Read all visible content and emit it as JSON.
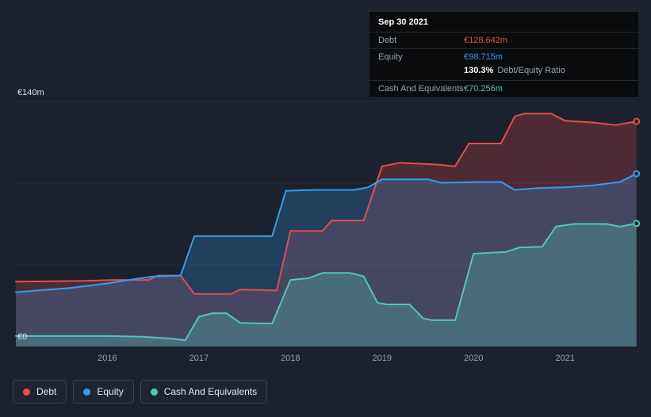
{
  "colors": {
    "background": "#1b212d",
    "debt": "#e64c4c",
    "equity": "#2f9ff0",
    "cash": "#4fc8b2",
    "grid": "#262e3c"
  },
  "tooltip": {
    "date": "Sep 30 2021",
    "debt_label": "Debt",
    "debt_value": "€128.642m",
    "equity_label": "Equity",
    "equity_value": "€98.715m",
    "ratio_value": "130.3%",
    "ratio_label": "Debt/Equity Ratio",
    "cash_label": "Cash And Equivalents",
    "cash_value": "€70.256m"
  },
  "axis": {
    "y_top": "€140m",
    "y_bottom": "€0",
    "x_ticks": [
      "2016",
      "2017",
      "2018",
      "2019",
      "2020",
      "2021"
    ]
  },
  "legend": {
    "debt": "Debt",
    "equity": "Equity",
    "cash": "Cash And Equivalents"
  },
  "chart_data": {
    "type": "area",
    "title": "Debt, Equity and Cash history to Sep 30 2021",
    "x_range": [
      2015.0,
      2021.8
    ],
    "ylim": [
      0,
      140
    ],
    "y_unit": "€m",
    "gridlines": [
      0,
      46.67,
      93.33,
      140
    ],
    "legend_position": "bottom-left",
    "series": [
      {
        "name": "Debt",
        "color": "#e64c4c",
        "fill_opacity": 0.25,
        "points": [
          [
            2015.0,
            37
          ],
          [
            2015.75,
            37.5
          ],
          [
            2016.1,
            38
          ],
          [
            2016.45,
            38
          ],
          [
            2016.55,
            40.5
          ],
          [
            2016.8,
            40.5
          ],
          [
            2016.95,
            30
          ],
          [
            2017.35,
            30
          ],
          [
            2017.45,
            32.5
          ],
          [
            2017.85,
            32
          ],
          [
            2018.0,
            66
          ],
          [
            2018.35,
            66
          ],
          [
            2018.45,
            72
          ],
          [
            2018.8,
            72
          ],
          [
            2019.0,
            103
          ],
          [
            2019.2,
            105
          ],
          [
            2019.6,
            104
          ],
          [
            2019.8,
            103
          ],
          [
            2019.95,
            116
          ],
          [
            2020.3,
            116
          ],
          [
            2020.45,
            131.5
          ],
          [
            2020.55,
            133
          ],
          [
            2020.85,
            133
          ],
          [
            2021.0,
            129
          ],
          [
            2021.3,
            128
          ],
          [
            2021.55,
            126.5
          ],
          [
            2021.78,
            128.642
          ]
        ]
      },
      {
        "name": "Equity",
        "color": "#2f9ff0",
        "fill_opacity": 0.25,
        "points": [
          [
            2015.0,
            31
          ],
          [
            2015.6,
            33.5
          ],
          [
            2016.0,
            36
          ],
          [
            2016.3,
            38.5
          ],
          [
            2016.5,
            40
          ],
          [
            2016.8,
            40.5
          ],
          [
            2016.95,
            63
          ],
          [
            2017.8,
            63
          ],
          [
            2017.95,
            89
          ],
          [
            2018.3,
            89.5
          ],
          [
            2018.7,
            89.5
          ],
          [
            2018.85,
            91
          ],
          [
            2019.0,
            95.5
          ],
          [
            2019.5,
            95.5
          ],
          [
            2019.65,
            93.5
          ],
          [
            2020.05,
            94
          ],
          [
            2020.3,
            94
          ],
          [
            2020.45,
            89.5
          ],
          [
            2020.7,
            90.5
          ],
          [
            2021.0,
            91
          ],
          [
            2021.3,
            92
          ],
          [
            2021.6,
            94
          ],
          [
            2021.78,
            98.715
          ]
        ]
      },
      {
        "name": "Cash And Equivalents",
        "color": "#4fc8b2",
        "fill_opacity": 0.28,
        "points": [
          [
            2015.0,
            6
          ],
          [
            2016.0,
            6
          ],
          [
            2016.4,
            5.5
          ],
          [
            2016.7,
            4.5
          ],
          [
            2016.85,
            3.5
          ],
          [
            2017.0,
            17
          ],
          [
            2017.15,
            19
          ],
          [
            2017.3,
            19
          ],
          [
            2017.45,
            13.5
          ],
          [
            2017.8,
            13
          ],
          [
            2018.0,
            38
          ],
          [
            2018.2,
            39
          ],
          [
            2018.35,
            42
          ],
          [
            2018.65,
            42
          ],
          [
            2018.8,
            40
          ],
          [
            2018.95,
            25
          ],
          [
            2019.05,
            24
          ],
          [
            2019.3,
            24
          ],
          [
            2019.45,
            16
          ],
          [
            2019.55,
            15
          ],
          [
            2019.8,
            15
          ],
          [
            2020.0,
            53
          ],
          [
            2020.35,
            54
          ],
          [
            2020.5,
            56.5
          ],
          [
            2020.75,
            57
          ],
          [
            2020.9,
            68.5
          ],
          [
            2021.1,
            70
          ],
          [
            2021.45,
            70
          ],
          [
            2021.6,
            68.5
          ],
          [
            2021.78,
            70.256
          ]
        ]
      }
    ]
  }
}
